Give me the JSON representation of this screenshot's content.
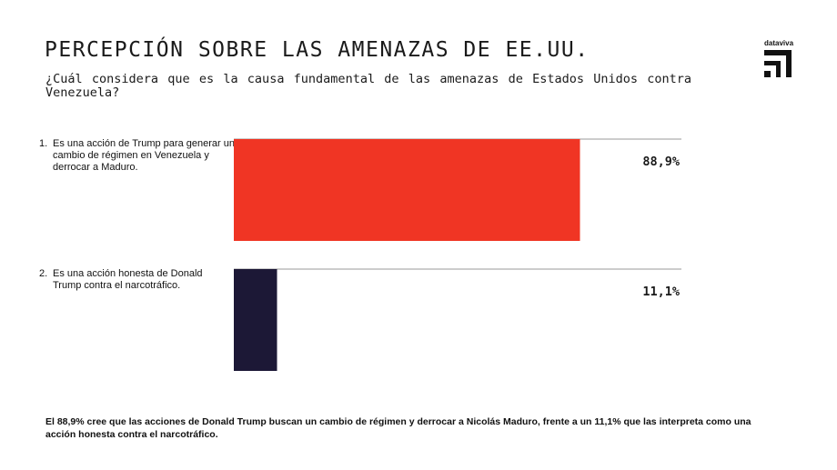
{
  "header": {
    "title": "PERCEPCIÓN SOBRE LAS AMENAZAS DE EE.UU.",
    "subtitle": "¿Cuál considera que es la causa fundamental de las amenazas de Estados Unidos contra Venezuela?"
  },
  "logo": {
    "text": "dataviva",
    "icon": "dataviva-logo-icon"
  },
  "chart_data": {
    "type": "bar",
    "orientation": "vertical",
    "categories": [
      "Es una acción de Trump para generar un cambio de régimen en Venezuela y derrocar a Maduro.",
      "Es una acción honesta de Donald Trump contra el narcotráfico."
    ],
    "category_numbers": [
      "1.",
      "2."
    ],
    "values": [
      88.9,
      11.1
    ],
    "value_labels": [
      "88,9%",
      "11,1%"
    ],
    "colors": [
      "#f03524",
      "#1c1836"
    ],
    "ylim": [
      0,
      100
    ],
    "grid": false,
    "legend": "none",
    "title": "",
    "xlabel": "",
    "ylabel": ""
  },
  "footnote": "El 88,9% cree que las acciones de Donald Trump buscan un cambio de régimen y derrocar a Nicolás Maduro, frente a un 11,1% que las interpreta como una acción honesta contra el narcotráfico."
}
